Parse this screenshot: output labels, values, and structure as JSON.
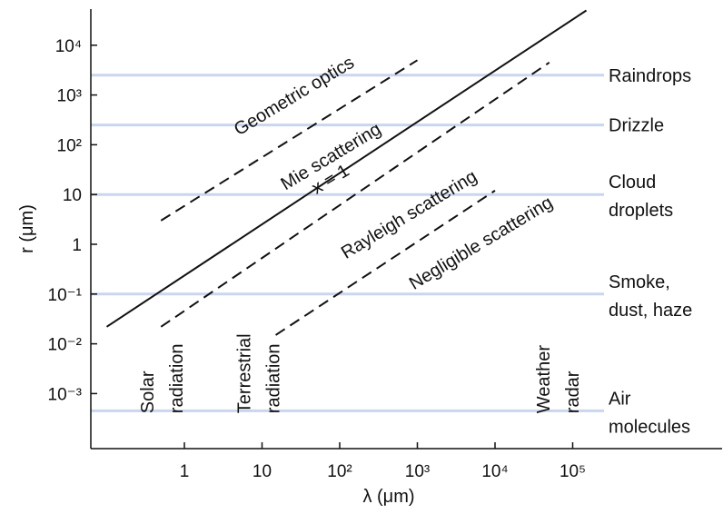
{
  "chart_data": {
    "type": "line",
    "xlabel": "λ (μm)",
    "ylabel": "r (μm)",
    "x_scale": "log",
    "y_scale": "log",
    "xlim": [
      0.1,
      1000000
    ],
    "ylim": [
      0.0001,
      100000
    ],
    "x_ticks": [
      {
        "value": 1,
        "label": "1"
      },
      {
        "value": 10,
        "label": "10"
      },
      {
        "value": 100,
        "label": "10²"
      },
      {
        "value": 1000,
        "label": "10³"
      },
      {
        "value": 10000,
        "label": "10⁴"
      },
      {
        "value": 100000,
        "label": "10⁵"
      }
    ],
    "y_ticks": [
      {
        "value": 0.001,
        "label": "10⁻³"
      },
      {
        "value": 0.01,
        "label": "10⁻²"
      },
      {
        "value": 0.1,
        "label": "10⁻¹"
      },
      {
        "value": 1,
        "label": "1"
      },
      {
        "value": 10,
        "label": "10"
      },
      {
        "value": 100,
        "label": "10²"
      },
      {
        "value": 1000,
        "label": "10³"
      },
      {
        "value": 10000,
        "label": "10⁴"
      }
    ],
    "particle_levels": [
      {
        "r": 2500,
        "label_lines": [
          "Raindrops"
        ]
      },
      {
        "r": 250,
        "label_lines": [
          "Drizzle"
        ]
      },
      {
        "r": 10,
        "label_lines": [
          "Cloud",
          "droplets"
        ]
      },
      {
        "r": 0.1,
        "label_lines": [
          "Smoke,",
          "dust, haze"
        ]
      },
      {
        "r": 0.00045,
        "label_lines": [
          "Air",
          "molecules"
        ]
      }
    ],
    "lines": [
      {
        "style": "solid",
        "x": [
          0.1,
          150000
        ],
        "y": [
          0.022,
          50000
        ]
      },
      {
        "style": "dashed",
        "x": [
          0.5,
          1000
        ],
        "y": [
          3,
          5000
        ]
      },
      {
        "style": "dashed",
        "x": [
          0.5,
          50000
        ],
        "y": [
          0.022,
          4500
        ]
      },
      {
        "style": "dashed",
        "x": [
          15,
          10000
        ],
        "y": [
          0.015,
          12
        ]
      }
    ],
    "region_labels": [
      {
        "text": "Geometric optics",
        "x": 5,
        "y": 150,
        "angle": -31
      },
      {
        "text": "Mie scattering",
        "x": 20,
        "y": 12,
        "angle": -31
      },
      {
        "text": "x = 1",
        "x": 50,
        "y": 10,
        "angle": -31
      },
      {
        "text": "Rayleigh scattering",
        "x": 120,
        "y": 0.5,
        "angle": -31
      },
      {
        "text": "Negligible scattering",
        "x": 900,
        "y": 0.12,
        "angle": -31
      }
    ],
    "band_labels": [
      {
        "lines": [
          "Solar",
          "radiation"
        ],
        "x": 0.4,
        "y": 0.0004
      },
      {
        "lines": [
          "Terrestrial",
          "radiation"
        ],
        "x": 7,
        "y": 0.0004
      },
      {
        "lines": [
          "Weather",
          "radar"
        ],
        "x": 50000,
        "y": 0.0004
      }
    ]
  }
}
